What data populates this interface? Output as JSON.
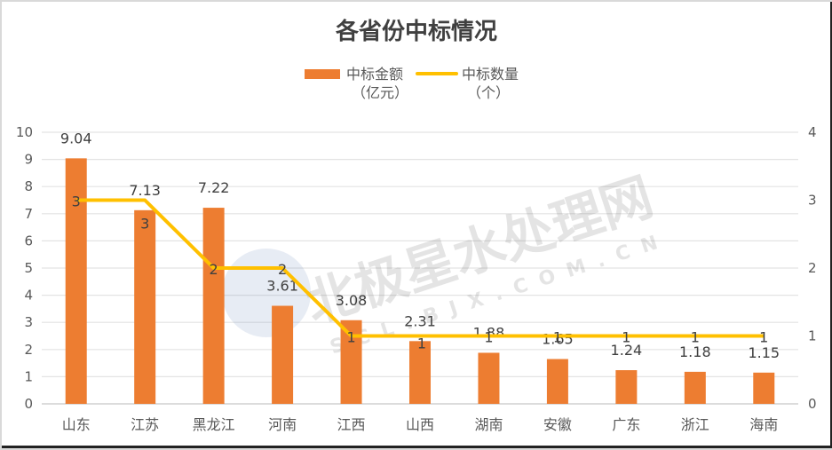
{
  "chart_data": {
    "type": "bar+line",
    "title": "各省份中标情况",
    "categories": [
      "山东",
      "江苏",
      "黑龙江",
      "河南",
      "江西",
      "山西",
      "湖南",
      "安徽",
      "广东",
      "浙江",
      "海南"
    ],
    "series": [
      {
        "name": "中标金额（亿元）",
        "type": "bar",
        "axis": "left",
        "color": "#ED7D31",
        "values": [
          9.04,
          7.13,
          7.22,
          3.61,
          3.08,
          2.31,
          1.88,
          1.65,
          1.24,
          1.18,
          1.15
        ]
      },
      {
        "name": "中标数量（个）",
        "type": "line",
        "axis": "right",
        "color": "#FFC000",
        "values": [
          3,
          3,
          2,
          2,
          1,
          1,
          1,
          1,
          1,
          1,
          1
        ]
      }
    ],
    "left_axis": {
      "min": 0,
      "max": 10,
      "ticks": [
        0,
        1,
        2,
        3,
        4,
        5,
        6,
        7,
        8,
        9,
        10
      ]
    },
    "right_axis": {
      "min": 0,
      "max": 4,
      "ticks": [
        0,
        1,
        2,
        3,
        4
      ]
    },
    "legend": {
      "position": "top",
      "entries": [
        "中标金额（亿元）",
        "中标数量（个）"
      ]
    },
    "grid": true,
    "xlabel": "",
    "ylabel": ""
  },
  "legend": {
    "bar_line1": "中标金额",
    "bar_line2": "（亿元）",
    "line_line1": "中标数量",
    "line_line2": "（个）"
  },
  "watermark": {
    "main": "北极星水处理网",
    "sub": "SCL.BJX.COM.CN"
  }
}
